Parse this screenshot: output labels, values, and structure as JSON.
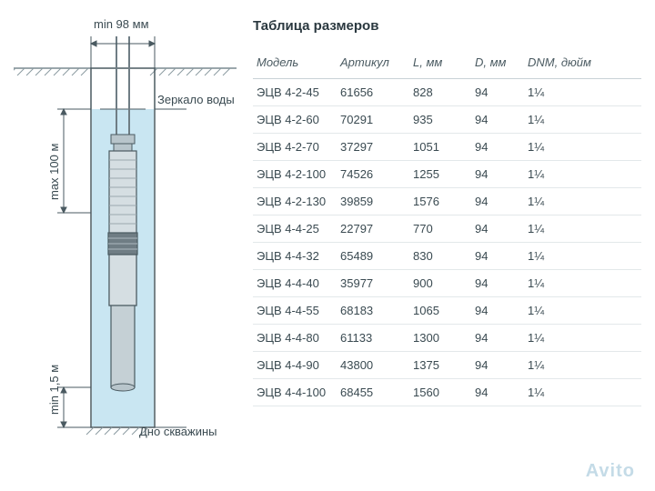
{
  "diagram": {
    "top_label": "min 98 мм",
    "water_label": "Зеркало воды",
    "depth_label": "max 100 м",
    "bottom_gap_label": "min 1,5 м",
    "bottom_label": "Дно скважины",
    "colors": {
      "ground_line": "#7a8a91",
      "water_fill": "#c9e6f2",
      "well_stroke": "#4a5a61",
      "pump_body": "#b8c5cb",
      "pump_dark": "#6f7d84",
      "hatch": "#8a9aa1"
    }
  },
  "table": {
    "title": "Таблица размеров",
    "columns": [
      "Модель",
      "Артикул",
      "L, мм",
      "D, мм",
      "DNM, дюйм"
    ],
    "rows": [
      [
        "ЭЦВ 4-2-45",
        "61656",
        "828",
        "94",
        "1¼"
      ],
      [
        "ЭЦВ 4-2-60",
        "70291",
        "935",
        "94",
        "1¼"
      ],
      [
        "ЭЦВ 4-2-70",
        "37297",
        "1051",
        "94",
        "1¼"
      ],
      [
        "ЭЦВ 4-2-100",
        "74526",
        "1255",
        "94",
        "1¼"
      ],
      [
        "ЭЦВ 4-2-130",
        "39859",
        "1576",
        "94",
        "1¼"
      ],
      [
        "ЭЦВ 4-4-25",
        "22797",
        "770",
        "94",
        "1¼"
      ],
      [
        "ЭЦВ 4-4-32",
        "65489",
        "830",
        "94",
        "1¼"
      ],
      [
        "ЭЦВ 4-4-40",
        "35977",
        "900",
        "94",
        "1¼"
      ],
      [
        "ЭЦВ 4-4-55",
        "68183",
        "1065",
        "94",
        "1¼"
      ],
      [
        "ЭЦВ 4-4-80",
        "61133",
        "1300",
        "94",
        "1¼"
      ],
      [
        "ЭЦВ 4-4-90",
        "43800",
        "1375",
        "94",
        "1¼"
      ],
      [
        "ЭЦВ 4-4-100",
        "68455",
        "1560",
        "94",
        "1¼"
      ]
    ]
  },
  "watermark": "Avito"
}
